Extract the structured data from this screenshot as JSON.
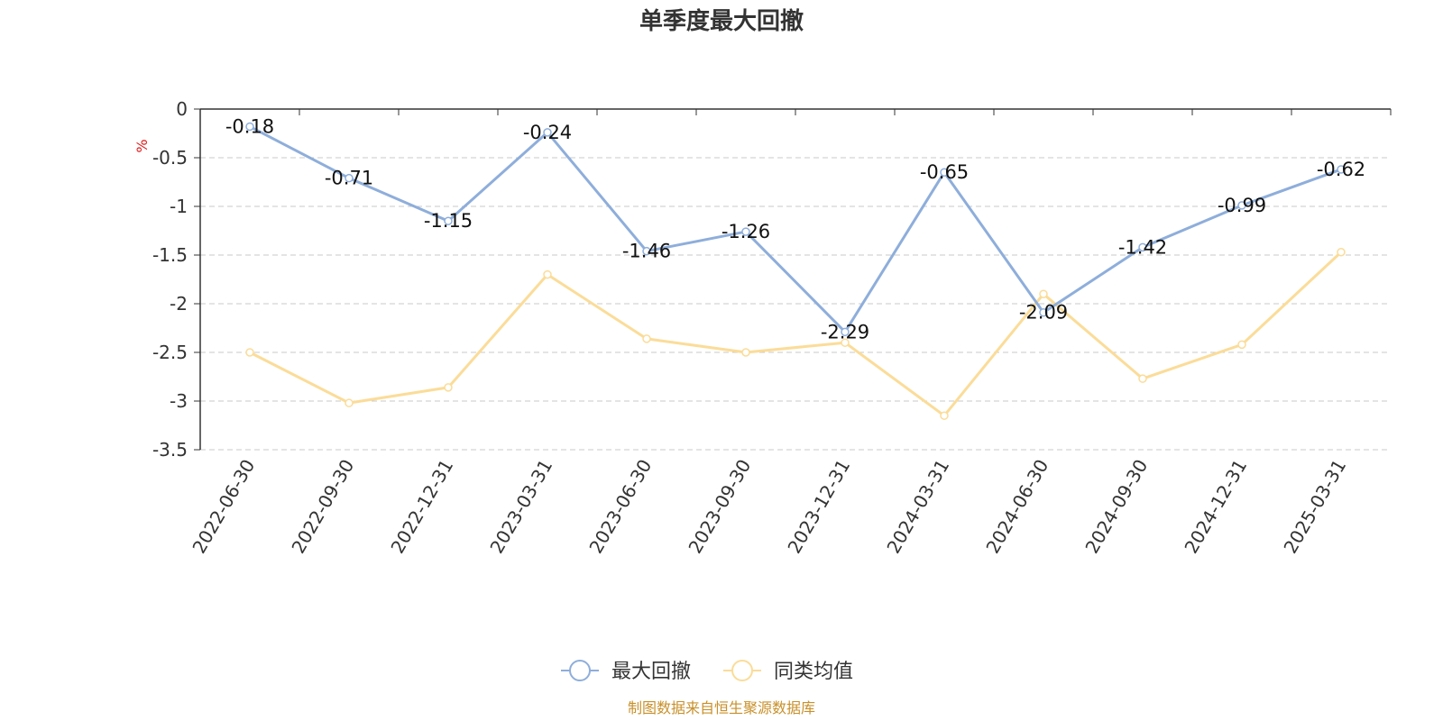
{
  "chart_data": {
    "type": "line",
    "title": "单季度最大回撤",
    "ylabel": "%",
    "categories": [
      "2022-06-30",
      "2022-09-30",
      "2022-12-31",
      "2023-03-31",
      "2023-06-30",
      "2023-09-30",
      "2023-12-31",
      "2024-03-31",
      "2024-06-30",
      "2024-09-30",
      "2024-12-31",
      "2025-03-31"
    ],
    "ylim": [
      -3.5,
      0
    ],
    "yticks": [
      "0",
      "-0.5",
      "-1",
      "-1.5",
      "-2",
      "-2.5",
      "-3",
      "-3.5"
    ],
    "grid": true,
    "legend_position": "bottom-center",
    "series": [
      {
        "name": "最大回撤",
        "color": "#8eaedb",
        "values": [
          -0.18,
          -0.71,
          -1.15,
          -0.24,
          -1.46,
          -1.26,
          -2.29,
          -0.65,
          -2.09,
          -1.42,
          -0.99,
          -0.62
        ],
        "labels": [
          "-0.18",
          "-0.71",
          "-1.15",
          "-0.24",
          "-1.46",
          "-1.26",
          "-2.29",
          "-0.65",
          "-2.09",
          "-1.42",
          "-0.99",
          "-0.62"
        ]
      },
      {
        "name": "同类均值",
        "color": "#fbdc98",
        "values": [
          -2.5,
          -3.02,
          -2.86,
          -1.7,
          -2.36,
          -2.5,
          -2.4,
          -3.15,
          -1.9,
          -2.77,
          -2.42,
          -1.47
        ]
      }
    ]
  },
  "footer": {
    "source": "制图数据来自恒生聚源数据库"
  }
}
